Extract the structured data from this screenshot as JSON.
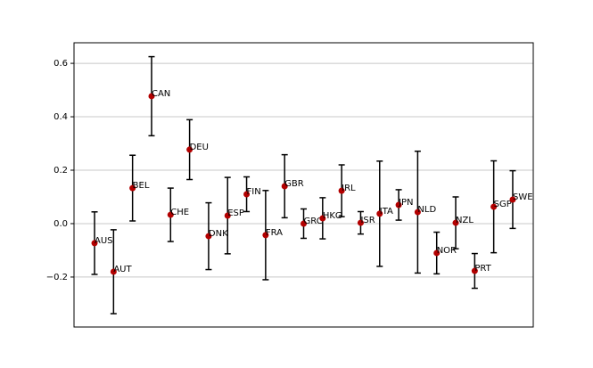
{
  "chart_data": {
    "type": "errorbar",
    "categories": [
      "AUS",
      "AUT",
      "BEL",
      "CAN",
      "CHE",
      "DEU",
      "DNK",
      "ESP",
      "FIN",
      "FRA",
      "GBR",
      "GRC",
      "HKG",
      "IRL",
      "ISR",
      "ITA",
      "JPN",
      "NLD",
      "NOR",
      "NZL",
      "PRT",
      "SGP",
      "SWE"
    ],
    "values": [
      -0.073,
      -0.18,
      0.133,
      0.477,
      0.033,
      0.277,
      -0.047,
      0.03,
      0.11,
      -0.043,
      0.14,
      0.0,
      0.02,
      0.123,
      0.003,
      0.037,
      0.07,
      0.043,
      -0.11,
      0.003,
      -0.177,
      0.063,
      0.09
    ],
    "errors": [
      0.117,
      0.157,
      0.123,
      0.148,
      0.1,
      0.112,
      0.125,
      0.143,
      0.065,
      0.167,
      0.118,
      0.055,
      0.077,
      0.097,
      0.042,
      0.197,
      0.057,
      0.228,
      0.078,
      0.097,
      0.065,
      0.172,
      0.108
    ],
    "color": "#b30000",
    "error_color": "#000000",
    "ylim": [
      -0.387,
      0.677
    ],
    "yticks": [
      {
        "value": -0.2,
        "label": "−0.2"
      },
      {
        "value": 0,
        "label": "0.0"
      },
      0.2,
      0.4,
      0.6
    ],
    "grid": true
  }
}
